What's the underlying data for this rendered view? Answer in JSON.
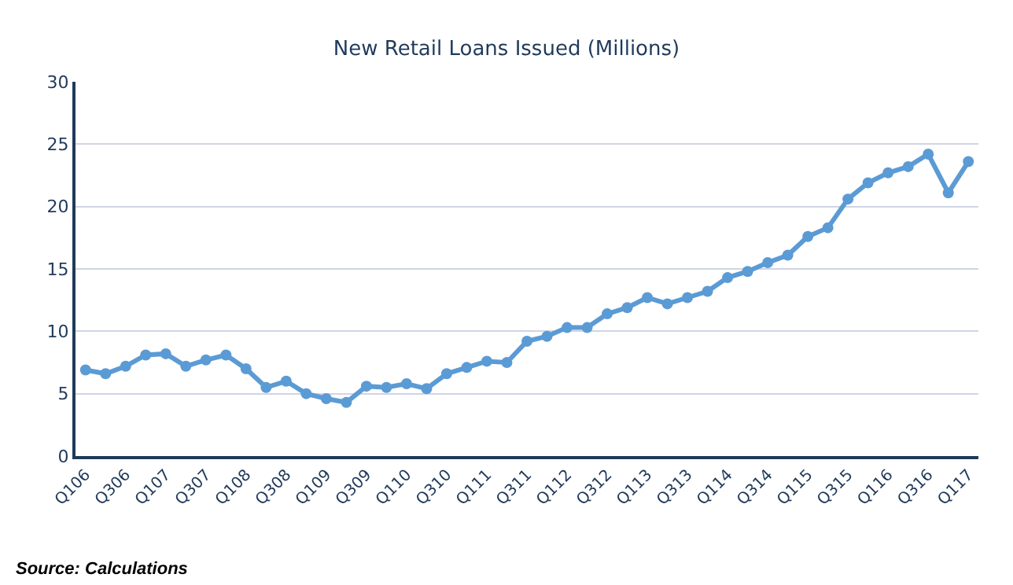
{
  "chart_data": {
    "type": "line",
    "title": "New Retail Loans Issued (Millions)",
    "categories": [
      "Q106",
      null,
      "Q306",
      null,
      "Q107",
      null,
      "Q307",
      null,
      "Q108",
      null,
      "Q308",
      null,
      "Q109",
      null,
      "Q309",
      null,
      "Q110",
      null,
      "Q310",
      null,
      "Q111",
      null,
      "Q311",
      null,
      "Q112",
      null,
      "Q312",
      null,
      "Q113",
      null,
      "Q313",
      null,
      "Q114",
      null,
      "Q314",
      null,
      "Q115",
      null,
      "Q315",
      null,
      "Q116",
      null,
      "Q316",
      null,
      "Q117"
    ],
    "series": [
      {
        "color": "#5b9bd5",
        "values": [
          6.9,
          6.6,
          7.2,
          8.1,
          8.2,
          7.2,
          7.7,
          8.1,
          7.0,
          5.5,
          6.0,
          5.0,
          4.6,
          4.3,
          5.6,
          5.5,
          5.8,
          5.4,
          6.6,
          7.1,
          7.6,
          7.5,
          9.2,
          9.6,
          10.3,
          10.3,
          11.4,
          11.9,
          12.7,
          12.2,
          12.7,
          13.2,
          14.3,
          14.8,
          15.5,
          16.1,
          17.6,
          18.3,
          20.6,
          21.9,
          22.7,
          23.2,
          24.2,
          21.1,
          23.6
        ]
      }
    ],
    "ylim": [
      0,
      30
    ],
    "yticks": [
      0,
      5,
      10,
      15,
      20,
      25,
      30
    ],
    "grid": "y",
    "marker": "circle",
    "line_style": "solid",
    "annotations": [
      "Source: Calculations"
    ]
  }
}
